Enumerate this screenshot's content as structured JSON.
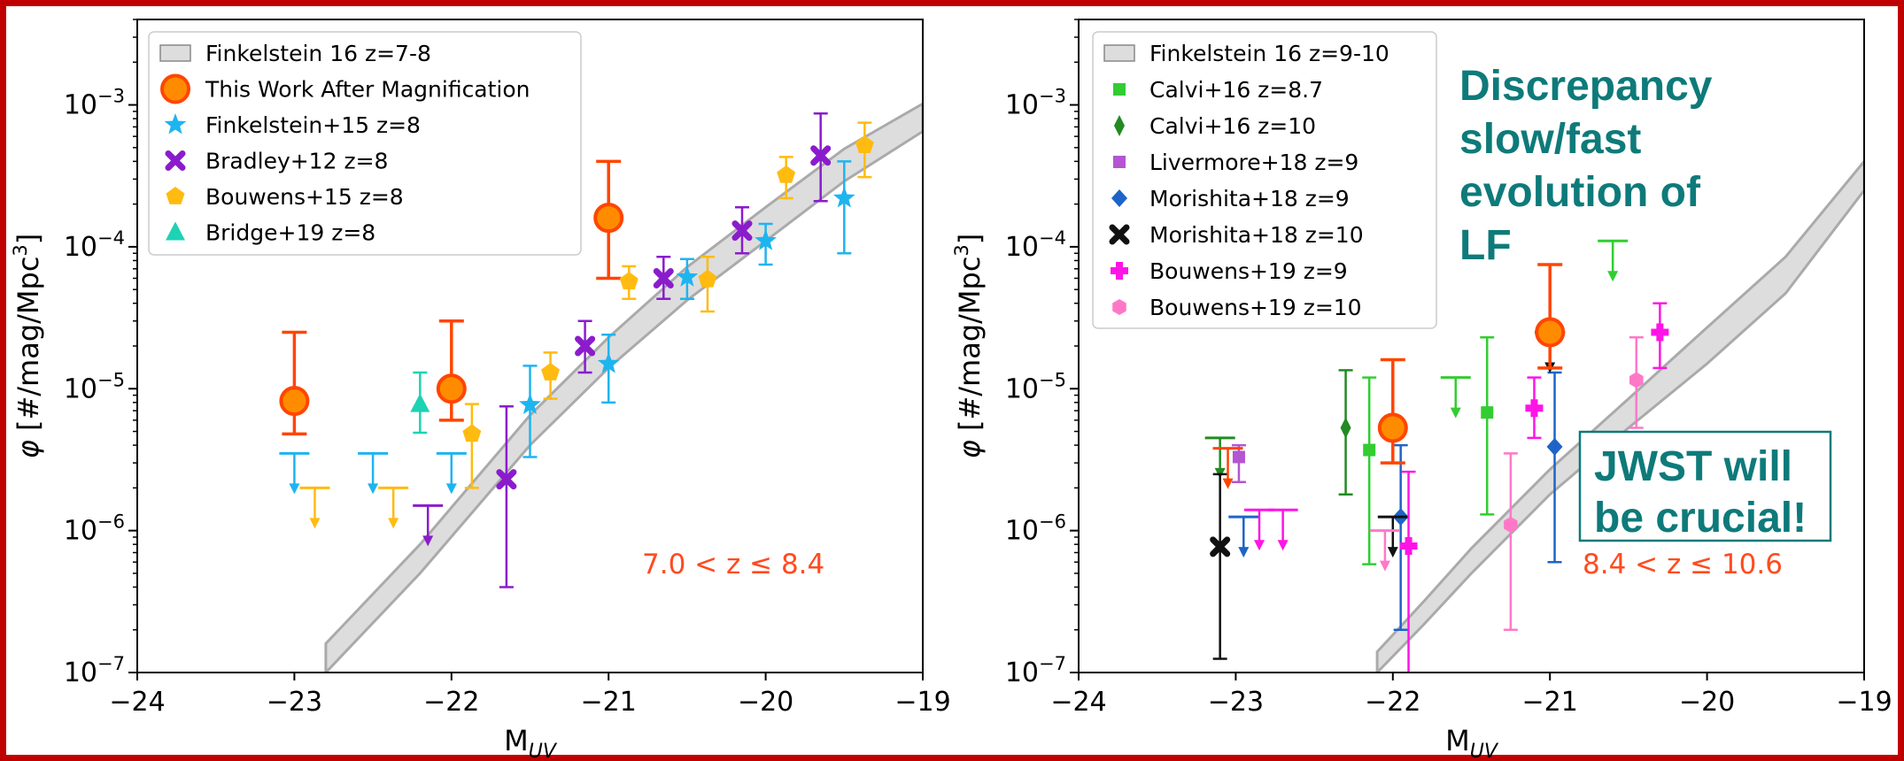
{
  "colors": {
    "frame": "#c00000",
    "band_fill": "#dddddd",
    "band_edge": "#aaaaaa",
    "callout": "#0e7a7a",
    "zrange": "#ff4b1f"
  },
  "callouts": {
    "discrepancy": [
      "Discrepancy",
      "slow/fast",
      "evolution of",
      "LF"
    ],
    "jwst": [
      "JWST will",
      "be crucial!"
    ]
  },
  "chart_data": [
    {
      "type": "scatter",
      "panel": "left",
      "xlabel": "M_UV",
      "ylabel": "φ [#/mag/Mpc^3]",
      "xlim": [
        -24,
        -19
      ],
      "ylim": [
        1e-07,
        0.004
      ],
      "yscale": "log",
      "x_ticks": [
        "−24",
        "−23",
        "−22",
        "−21",
        "−20",
        "−19"
      ],
      "y_ticks": [
        "10^-7",
        "10^-6",
        "10^-5",
        "10^-4",
        "10^-3"
      ],
      "annotation": "7.0 < z ≤ 8.4",
      "legend_position": "top-left",
      "band": {
        "name": "Finkelstein 16  z=7-8",
        "x": [
          -22.8,
          -22.2,
          -21.5,
          -21.0,
          -20.5,
          -20.0,
          -19.5,
          -19.0
        ],
        "lower": [
          1e-07,
          5e-07,
          4e-06,
          1.4e-05,
          4.2e-05,
          0.00011,
          0.00029,
          0.00065
        ],
        "upper": [
          1.6e-07,
          8e-07,
          6.5e-06,
          2.3e-05,
          7.2e-05,
          0.00019,
          0.00049,
          0.00102
        ]
      },
      "series": [
        {
          "name": "This Work After Magnification",
          "marker": "circle-big",
          "color": "#ff8c00",
          "edge": "#ff4500",
          "points": [
            {
              "x": -23.0,
              "y": 8.2e-06,
              "lo": 4.8e-06,
              "hi": 2.5e-05
            },
            {
              "x": -22.0,
              "y": 1e-05,
              "lo": 6e-06,
              "hi": 3e-05
            },
            {
              "x": -21.0,
              "y": 0.00016,
              "lo": 6e-05,
              "hi": 0.0004
            }
          ]
        },
        {
          "name": "Finkelstein+15 z=8",
          "marker": "star",
          "color": "#1eb4f0",
          "points": [
            {
              "x": -21.5,
              "y": 7.7e-06,
              "lo": 3.3e-06,
              "hi": 1.45e-05
            },
            {
              "x": -21.0,
              "y": 1.5e-05,
              "lo": 8e-06,
              "hi": 2.4e-05
            },
            {
              "x": -20.5,
              "y": 6.1e-05,
              "lo": 4.3e-05,
              "hi": 8.2e-05
            },
            {
              "x": -20.0,
              "y": 0.00011,
              "lo": 7.5e-05,
              "hi": 0.000145
            },
            {
              "x": -19.5,
              "y": 0.00022,
              "lo": 9e-05,
              "hi": 0.0004
            }
          ],
          "upper_limits": [
            {
              "x": -23.0,
              "y": 3.5e-06
            },
            {
              "x": -22.5,
              "y": 3.5e-06
            },
            {
              "x": -22.0,
              "y": 3.5e-06
            }
          ]
        },
        {
          "name": "Bradley+12 z=8",
          "marker": "x",
          "color": "#8b1ccc",
          "points": [
            {
              "x": -21.65,
              "y": 2.3e-06,
              "lo": 4e-07,
              "hi": 7.5e-06
            },
            {
              "x": -21.15,
              "y": 2e-05,
              "lo": 1.3e-05,
              "hi": 3e-05
            },
            {
              "x": -20.65,
              "y": 6e-05,
              "lo": 4.3e-05,
              "hi": 8.5e-05
            },
            {
              "x": -20.15,
              "y": 0.00013,
              "lo": 9e-05,
              "hi": 0.00019
            },
            {
              "x": -19.65,
              "y": 0.00044,
              "lo": 0.00021,
              "hi": 0.00087
            }
          ],
          "upper_limits": [
            {
              "x": -22.15,
              "y": 1.5e-06
            }
          ]
        },
        {
          "name": "Bouwens+15 z=8",
          "marker": "pentagon",
          "color": "#ffbb10",
          "points": [
            {
              "x": -21.87,
              "y": 4.8e-06,
              "lo": 2e-06,
              "hi": 7.8e-06
            },
            {
              "x": -21.37,
              "y": 1.3e-05,
              "lo": 8.5e-06,
              "hi": 1.8e-05
            },
            {
              "x": -20.87,
              "y": 5.7e-05,
              "lo": 4.3e-05,
              "hi": 7.3e-05
            },
            {
              "x": -20.37,
              "y": 5.9e-05,
              "lo": 3.5e-05,
              "hi": 8.5e-05
            },
            {
              "x": -19.87,
              "y": 0.00032,
              "lo": 0.00022,
              "hi": 0.00043
            },
            {
              "x": -19.37,
              "y": 0.00052,
              "lo": 0.00031,
              "hi": 0.00075
            }
          ],
          "upper_limits": [
            {
              "x": -22.87,
              "y": 2e-06
            },
            {
              "x": -22.37,
              "y": 2e-06
            }
          ]
        },
        {
          "name": "Bridge+19 z=8",
          "marker": "triangle",
          "color": "#1ed2b4",
          "points": [
            {
              "x": -22.2,
              "y": 7.8e-06,
              "lo": 4.9e-06,
              "hi": 1.3e-05
            }
          ]
        }
      ]
    },
    {
      "type": "scatter",
      "panel": "right",
      "xlabel": "M_UV",
      "ylabel": "φ [#/mag/Mpc^3]",
      "xlim": [
        -24,
        -19
      ],
      "ylim": [
        1e-07,
        0.004
      ],
      "yscale": "log",
      "x_ticks": [
        "−24",
        "−23",
        "−22",
        "−21",
        "−20",
        "−19"
      ],
      "y_ticks": [
        "10^-7",
        "10^-6",
        "10^-5",
        "10^-4",
        "10^-3"
      ],
      "annotation": "8.4 < z ≤ 10.6",
      "legend_position": "top-left",
      "band": {
        "name": "Finkelstein 16  z=9-10",
        "x": [
          -22.1,
          -21.8,
          -21.5,
          -21.0,
          -20.5,
          -20.0,
          -19.5,
          -19.0
        ],
        "lower": [
          1e-07,
          2.2e-07,
          5e-07,
          1.8e-06,
          5.3e-06,
          1.5e-05,
          4.7e-05,
          0.00025
        ],
        "upper": [
          1.4e-07,
          3.2e-07,
          7.5e-07,
          2.7e-06,
          8.5e-06,
          2.7e-05,
          8.5e-05,
          0.0004
        ]
      },
      "series": [
        {
          "name": "Calvi+16 z=8.7",
          "marker": "square",
          "color": "#32cd32",
          "points": [
            {
              "x": -22.15,
              "y": 3.7e-06,
              "lo": 5.8e-07,
              "hi": 1.2e-05
            },
            {
              "x": -21.4,
              "y": 6.8e-06,
              "lo": 1.3e-06,
              "hi": 2.3e-05
            }
          ],
          "upper_limits": [
            {
              "x": -21.6,
              "y": 1.2e-05
            },
            {
              "x": -20.6,
              "y": 0.00011
            }
          ]
        },
        {
          "name": "Calvi+16 z=10",
          "marker": "thin-diamond",
          "color": "#228b22",
          "points": [
            {
              "x": -22.3,
              "y": 5.3e-06,
              "lo": 1.8e-06,
              "hi": 1.35e-05
            }
          ],
          "upper_limits": [
            {
              "x": -23.1,
              "y": 4.5e-06
            }
          ]
        },
        {
          "name": "Livermore+18 z=9",
          "marker": "square",
          "color": "#b455d2",
          "points": [
            {
              "x": -22.98,
              "y": 3.3e-06,
              "lo": 2.2e-06,
              "hi": 4e-06
            }
          ]
        },
        {
          "name": "Morishita+18 z=9",
          "marker": "diamond",
          "color": "#1e64c8",
          "points": [
            {
              "x": -21.95,
              "y": 1.25e-06,
              "lo": 2e-07,
              "hi": 4e-06
            },
            {
              "x": -20.97,
              "y": 3.9e-06,
              "lo": 6e-07,
              "hi": 1.3e-05
            }
          ],
          "upper_limits": [
            {
              "x": -22.95,
              "y": 1.25e-06
            }
          ]
        },
        {
          "name": "Morishita+18 z=10",
          "marker": "x",
          "color": "#111111",
          "points": [
            {
              "x": -23.1,
              "y": 7.7e-07,
              "lo": 1.25e-07,
              "hi": 2.5e-06
            }
          ],
          "upper_limits": [
            {
              "x": -22.0,
              "y": 1.25e-06
            },
            {
              "x": -21.0,
              "y": 2.5e-05
            }
          ]
        },
        {
          "name": "Bouwens+19 z=9",
          "marker": "plus",
          "color": "#ff14e6",
          "points": [
            {
              "x": -21.9,
              "y": 7.8e-07,
              "lo": 8e-08,
              "hi": 2.6e-06
            },
            {
              "x": -21.1,
              "y": 7.3e-06,
              "lo": 4.5e-06,
              "hi": 1.2e-05
            },
            {
              "x": -20.3,
              "y": 2.5e-05,
              "lo": 1.4e-05,
              "hi": 4e-05
            }
          ],
          "upper_limits": [
            {
              "x": -22.85,
              "y": 1.4e-06
            },
            {
              "x": -22.7,
              "y": 1.4e-06
            }
          ]
        },
        {
          "name": "Bouwens+19 z=10",
          "marker": "hexagon",
          "color": "#ff78c8",
          "points": [
            {
              "x": -21.25,
              "y": 1.1e-06,
              "lo": 2e-07,
              "hi": 3.5e-06
            },
            {
              "x": -20.45,
              "y": 1.15e-05,
              "lo": 5.3e-06,
              "hi": 2.3e-05
            }
          ],
          "upper_limits": [
            {
              "x": -22.05,
              "y": 1e-06
            }
          ]
        },
        {
          "name": "This Work After Magnification",
          "marker": "circle-big",
          "color": "#ff8c00",
          "edge": "#ff4500",
          "in_legend": false,
          "points": [
            {
              "x": -22.0,
              "y": 5.3e-06,
              "lo": 3e-06,
              "hi": 1.6e-05
            },
            {
              "x": -21.0,
              "y": 2.5e-05,
              "lo": 1.4e-05,
              "hi": 7.5e-05
            }
          ],
          "upper_limits": [
            {
              "x": -23.05,
              "y": 3.8e-06
            }
          ]
        }
      ]
    }
  ]
}
